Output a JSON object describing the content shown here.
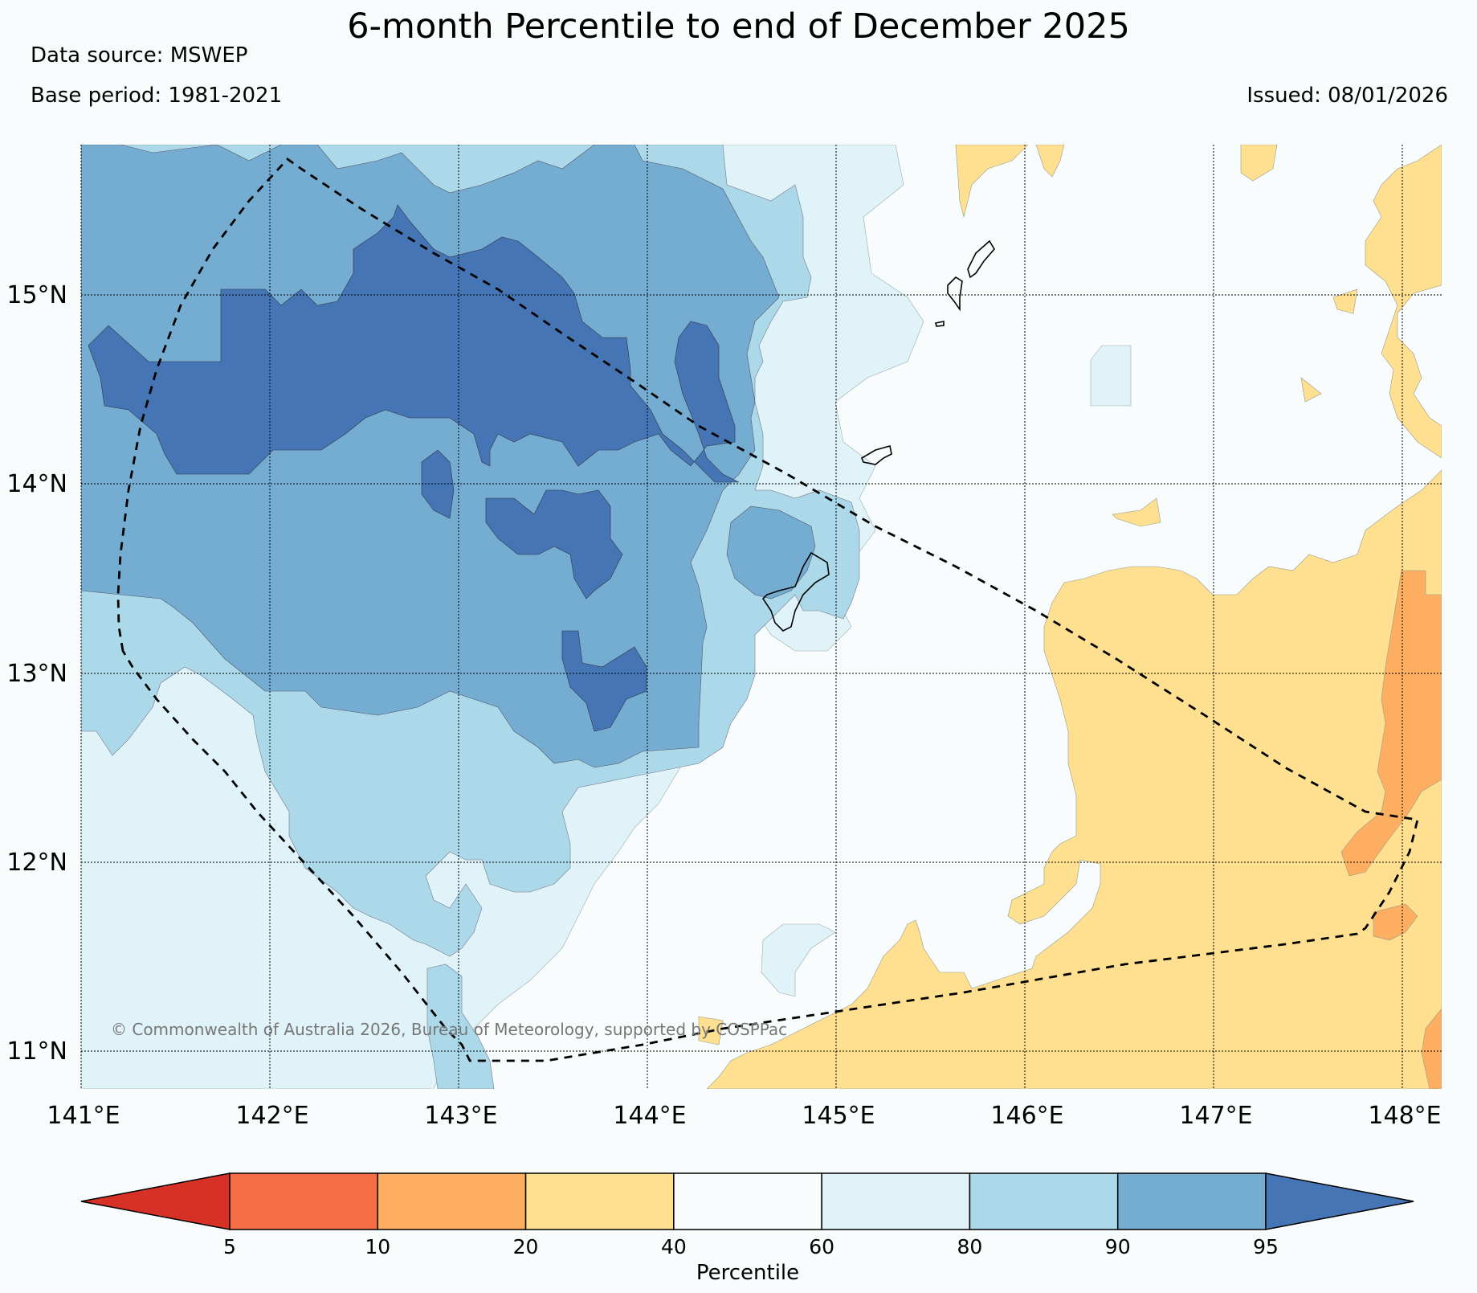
{
  "title": "6-month Percentile to end of December 2025",
  "data_source": "Data source: MSWEP",
  "base_period": "Base period: 1981-2021",
  "issued": "Issued: 08/01/2026",
  "copyright": "© Commonwealth of Australia 2026, Bureau of Meteorology, supported by COSPPac",
  "latitude_labels": [
    "15°N",
    "14°N",
    "13°N",
    "12°N",
    "11°N"
  ],
  "longitude_labels": [
    "141°E",
    "142°E",
    "143°E",
    "144°E",
    "145°E",
    "146°E",
    "147°E",
    "148°E"
  ],
  "colorbar": {
    "title": "Percentile",
    "ticks": [
      "5",
      "10",
      "20",
      "40",
      "60",
      "80",
      "90",
      "95"
    ],
    "colors": [
      "#d73027",
      "#f46d43",
      "#fdae61",
      "#fee090",
      "#f8fcfd",
      "#e0f3f8",
      "#abd9e9",
      "#74add1",
      "#4575b4"
    ]
  }
}
